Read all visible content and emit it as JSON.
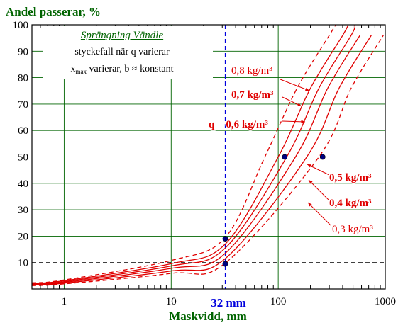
{
  "chart_data": {
    "type": "line",
    "title": "Andel passerar, %",
    "xlabel": "Maskvidd, mm",
    "x_scale": "log",
    "xlim": [
      0.5,
      1000
    ],
    "ylim": [
      0,
      100
    ],
    "x_ticks": [
      1,
      10,
      100,
      1000
    ],
    "x_tick_labels": [
      "1",
      "10",
      "100",
      "1000"
    ],
    "y_ticks": [
      10,
      20,
      30,
      40,
      50,
      60,
      70,
      80,
      90,
      100
    ],
    "y_tick_labels": [
      "10",
      "20",
      "30",
      "40",
      "50",
      "60",
      "70",
      "80",
      "90",
      "100"
    ],
    "grid": true,
    "inset_text": {
      "heading": "Sprängning Vändle",
      "line1": "styckefall när q varierar",
      "line2_main": "x",
      "line2_sub": "max",
      "line2_rest": " varierar, b ≈ konstant"
    },
    "series": [
      {
        "name": "0,8 kg/m³",
        "dashed": true,
        "x50": 75,
        "color": "#e00000",
        "points": [
          [
            0.5,
            2.3
          ],
          [
            1,
            3.4
          ],
          [
            10,
            10.8
          ],
          [
            32,
            19.5
          ],
          [
            75,
            50
          ],
          [
            150,
            76
          ],
          [
            300,
            96
          ],
          [
            345,
            100
          ]
        ]
      },
      {
        "name": "0,7 kg/m³",
        "dashed": false,
        "x50": 100,
        "color": "#e00000",
        "points": [
          [
            0.5,
            2.1
          ],
          [
            1,
            3.1
          ],
          [
            10,
            9.6
          ],
          [
            32,
            17
          ],
          [
            100,
            50
          ],
          [
            200,
            76
          ],
          [
            400,
            96
          ],
          [
            450,
            100
          ]
        ]
      },
      {
        "name": "q = 0,6 kg/m³",
        "dashed": false,
        "x50": 120,
        "color": "#e00000",
        "points": [
          [
            0.5,
            1.9
          ],
          [
            1,
            2.8
          ],
          [
            10,
            8.7
          ],
          [
            32,
            15.5
          ],
          [
            120,
            50
          ],
          [
            240,
            76
          ],
          [
            480,
            96
          ],
          [
            520,
            100
          ]
        ]
      },
      {
        "name": "0,5 kg/m³",
        "dashed": false,
        "x50": 145,
        "color": "#e00000",
        "points": [
          [
            0.5,
            1.7
          ],
          [
            1,
            2.5
          ],
          [
            10,
            7.8
          ],
          [
            32,
            13.5
          ],
          [
            145,
            50
          ],
          [
            290,
            76
          ],
          [
            580,
            96
          ]
        ]
      },
      {
        "name": "0,4 kg/m³",
        "dashed": false,
        "x50": 185,
        "color": "#e00000",
        "points": [
          [
            0.5,
            1.5
          ],
          [
            1,
            2.2
          ],
          [
            10,
            6.8
          ],
          [
            32,
            11.5
          ],
          [
            185,
            50
          ],
          [
            370,
            76
          ],
          [
            740,
            96
          ]
        ]
      },
      {
        "name": "0,3 kg/m³",
        "dashed": true,
        "x50": 240,
        "color": "#e00000",
        "points": [
          [
            0.5,
            1.3
          ],
          [
            1,
            1.9
          ],
          [
            10,
            5.9
          ],
          [
            32,
            9.8
          ],
          [
            240,
            50
          ],
          [
            480,
            76
          ],
          [
            960,
            96
          ]
        ]
      }
    ],
    "marker_points": [
      {
        "x": 32,
        "y": 19
      },
      {
        "x": 32,
        "y": 9.5
      },
      {
        "x": 115,
        "y": 50
      },
      {
        "x": 260,
        "y": 50
      }
    ],
    "reference_lines": {
      "vertical_x": 32,
      "vertical_label": "32 mm",
      "horizontal_y": [
        10,
        50
      ]
    },
    "annotations": [
      {
        "text": "0,8 kg/m³",
        "series": "0,8 kg/m³"
      },
      {
        "text": "0,7 kg/m³",
        "series": "0,7 kg/m³"
      },
      {
        "text": "q = 0,6 kg/m³",
        "series": "q = 0,6 kg/m³"
      },
      {
        "text": "0,5 kg/m³",
        "series": "0,5 kg/m³"
      },
      {
        "text": "0,4 kg/m³",
        "series": "0,4 kg/m³"
      },
      {
        "text": "0,3 kg/m³",
        "series": "0,3 kg/m³"
      }
    ],
    "colors": {
      "axis": "#000000",
      "grid": "#006400",
      "curve": "#e00000",
      "reference_vertical": "#0000dd",
      "reference_horizontal": "#000000",
      "marker": "#000080",
      "vertical_label": "#0000dd"
    }
  }
}
